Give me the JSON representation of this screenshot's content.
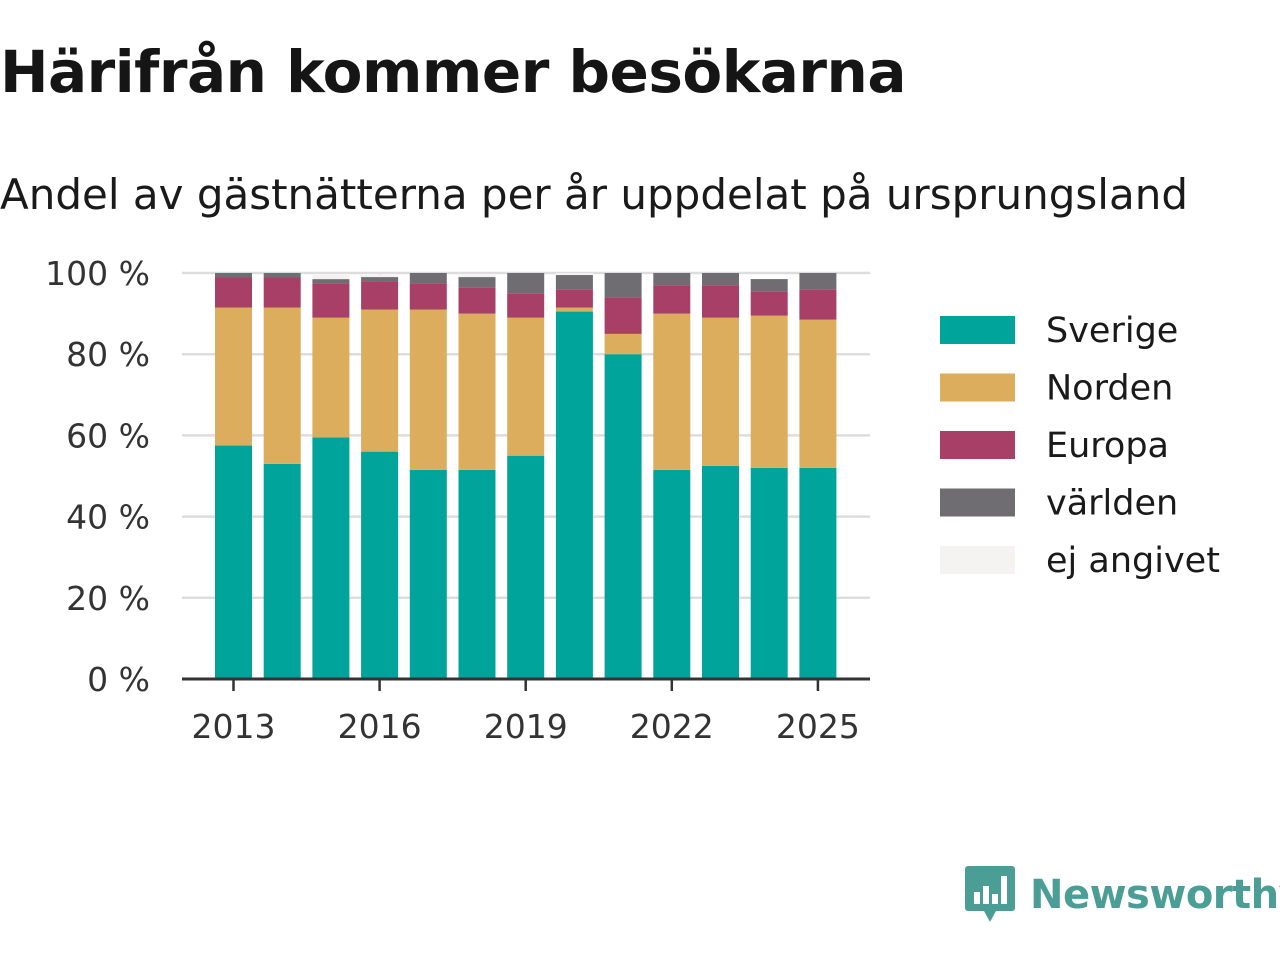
{
  "title": "Härifrån kommer besökarna",
  "subtitle": "Andel av gästnätterna per år uppdelat på ursprungsland",
  "brand": "Newsworthy",
  "brand_icon": "bar-chart-speech-bubble-icon",
  "colors": {
    "Sverige": "#00a49a",
    "Norden": "#dbad5c",
    "Europa": "#a73f66",
    "världen": "#6f6d72",
    "ej angivet": "#f4f3f1",
    "brand": "#4a9e95",
    "grid": "#dddddd",
    "axis": "#333333"
  },
  "chart_data": {
    "type": "bar",
    "stacked": true,
    "categories": [
      2013,
      2014,
      2015,
      2016,
      2017,
      2018,
      2019,
      2020,
      2021,
      2022,
      2023,
      2024,
      2025
    ],
    "x_ticks": [
      "2013",
      "2016",
      "2019",
      "2022",
      "2025"
    ],
    "y_ticks": [
      "0 %",
      "20 %",
      "40 %",
      "60 %",
      "80 %",
      "100 %"
    ],
    "ylim": [
      0,
      100
    ],
    "grid": true,
    "legend_position": "right",
    "series": [
      {
        "name": "Sverige",
        "values": [
          57.5,
          53,
          59.5,
          56,
          51.5,
          51.5,
          55,
          90.5,
          80,
          51.5,
          52.5,
          52,
          52
        ]
      },
      {
        "name": "Norden",
        "values": [
          34,
          38.5,
          29.5,
          35,
          39.5,
          38.5,
          34,
          1,
          5,
          38.5,
          36.5,
          37.5,
          36.5
        ]
      },
      {
        "name": "Europa",
        "values": [
          7.5,
          7.5,
          8.5,
          7,
          6.5,
          6.5,
          6,
          4.5,
          9,
          7,
          8,
          6,
          7.5
        ]
      },
      {
        "name": "världen",
        "values": [
          1,
          1,
          1,
          1,
          2.5,
          2.5,
          5,
          3.5,
          6,
          3,
          3,
          3,
          4
        ]
      },
      {
        "name": "ej angivet",
        "values": [
          0,
          0,
          1,
          0.5,
          0,
          0.5,
          0,
          0.5,
          0,
          0,
          0,
          0,
          0
        ]
      }
    ]
  }
}
